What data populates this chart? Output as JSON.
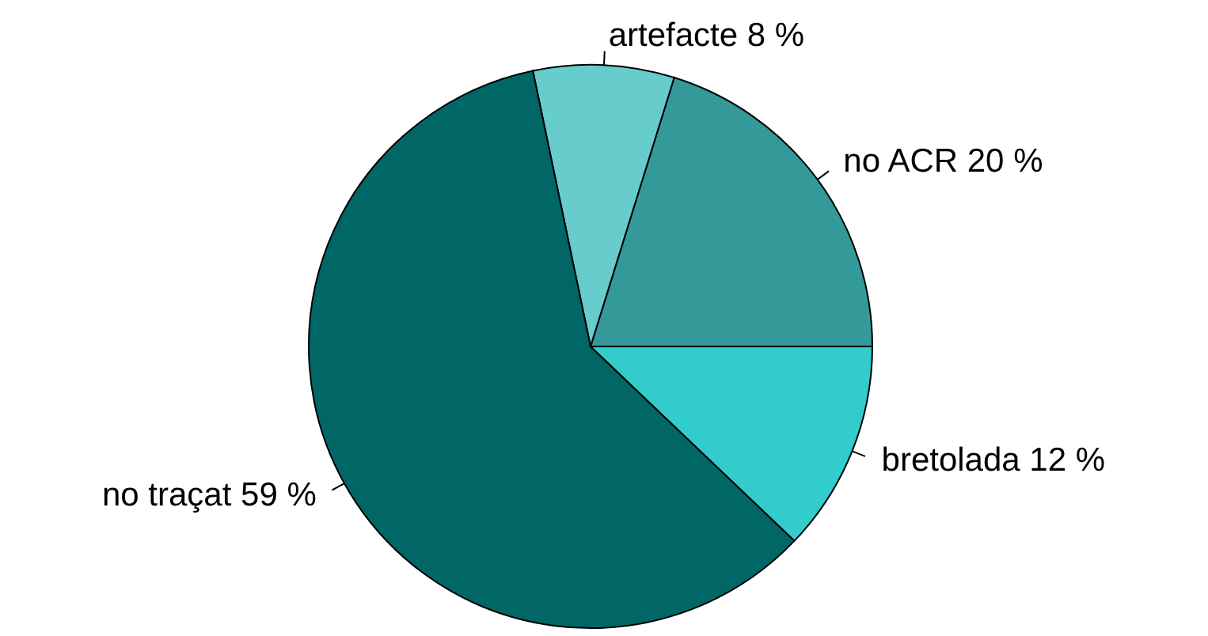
{
  "chart_data": {
    "type": "pie",
    "categories": [
      "no ACR",
      "artefacte",
      "no traçat",
      "bretolada"
    ],
    "values": [
      20,
      8,
      59,
      12
    ],
    "value_labels": [
      "20 %",
      "8 %",
      "59 %",
      "12 %"
    ],
    "colors": [
      "#339999",
      "#66cccc",
      "#006666",
      "#33cccc"
    ]
  }
}
